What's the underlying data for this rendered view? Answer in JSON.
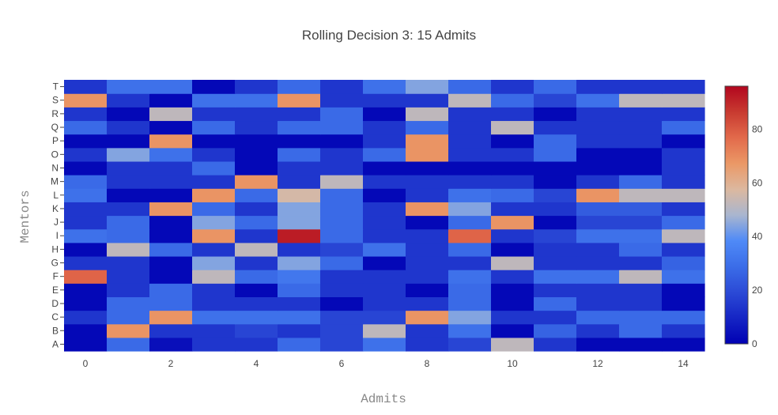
{
  "chart_data": {
    "type": "heatmap",
    "title": "Rolling Decision 3: 15 Admits",
    "xlabel": "Admits",
    "ylabel": "Mentors",
    "x": [
      0,
      1,
      2,
      3,
      4,
      5,
      6,
      7,
      8,
      9,
      10,
      11,
      12,
      13,
      14
    ],
    "x_tick_labels": [
      "0",
      "2",
      "4",
      "6",
      "8",
      "10",
      "12",
      "14"
    ],
    "x_tick_values": [
      0,
      2,
      4,
      6,
      8,
      10,
      12,
      14
    ],
    "y": [
      "A",
      "B",
      "C",
      "D",
      "E",
      "F",
      "G",
      "H",
      "I",
      "J",
      "K",
      "L",
      "M",
      "N",
      "O",
      "P",
      "Q",
      "R",
      "S",
      "T"
    ],
    "z": [
      [
        2,
        28,
        4,
        14,
        14,
        28,
        18,
        30,
        14,
        18,
        52,
        14,
        2,
        2,
        2
      ],
      [
        2,
        68,
        14,
        14,
        18,
        14,
        18,
        52,
        14,
        30,
        2,
        26,
        14,
        28,
        14
      ],
      [
        14,
        28,
        68,
        30,
        30,
        30,
        18,
        18,
        68,
        44,
        14,
        14,
        28,
        28,
        28
      ],
      [
        2,
        28,
        28,
        14,
        14,
        14,
        2,
        14,
        14,
        28,
        2,
        28,
        14,
        14,
        2
      ],
      [
        2,
        14,
        28,
        14,
        2,
        28,
        14,
        14,
        2,
        28,
        2,
        14,
        14,
        14,
        2
      ],
      [
        78,
        14,
        2,
        52,
        28,
        32,
        14,
        14,
        14,
        30,
        14,
        30,
        30,
        52,
        30
      ],
      [
        14,
        14,
        2,
        44,
        14,
        44,
        28,
        2,
        14,
        14,
        52,
        14,
        14,
        14,
        26
      ],
      [
        2,
        52,
        28,
        14,
        52,
        14,
        18,
        30,
        14,
        28,
        2,
        14,
        14,
        28,
        14
      ],
      [
        30,
        28,
        2,
        68,
        14,
        92,
        28,
        14,
        14,
        78,
        14,
        18,
        30,
        30,
        52
      ],
      [
        14,
        28,
        2,
        44,
        28,
        44,
        28,
        14,
        2,
        28,
        68,
        2,
        18,
        18,
        28
      ],
      [
        14,
        14,
        68,
        28,
        14,
        44,
        28,
        14,
        68,
        44,
        14,
        14,
        24,
        24,
        14
      ],
      [
        30,
        2,
        2,
        68,
        28,
        56,
        28,
        2,
        14,
        30,
        28,
        18,
        68,
        52,
        52
      ],
      [
        28,
        14,
        14,
        14,
        68,
        14,
        52,
        14,
        14,
        14,
        14,
        2,
        14,
        28,
        14
      ],
      [
        2,
        14,
        14,
        28,
        2,
        14,
        14,
        2,
        2,
        2,
        2,
        2,
        2,
        2,
        14
      ],
      [
        14,
        44,
        30,
        14,
        2,
        28,
        14,
        28,
        68,
        14,
        14,
        28,
        2,
        2,
        14
      ],
      [
        2,
        2,
        68,
        2,
        2,
        2,
        2,
        14,
        68,
        14,
        2,
        28,
        14,
        14,
        2
      ],
      [
        28,
        14,
        2,
        28,
        14,
        28,
        28,
        14,
        28,
        14,
        52,
        14,
        14,
        14,
        28
      ],
      [
        14,
        2,
        52,
        14,
        14,
        14,
        28,
        2,
        52,
        14,
        14,
        2,
        14,
        14,
        14
      ],
      [
        68,
        14,
        2,
        30,
        30,
        68,
        14,
        14,
        14,
        52,
        28,
        18,
        30,
        52,
        52
      ],
      [
        14,
        30,
        30,
        2,
        14,
        28,
        14,
        30,
        44,
        28,
        14,
        28,
        14,
        14,
        14
      ]
    ],
    "zmin": 0,
    "zmax": 96,
    "colorscale": [
      [
        0.0,
        "#0000b3"
      ],
      [
        0.2,
        "#2b4ad6"
      ],
      [
        0.3,
        "#3b6de8"
      ],
      [
        0.4,
        "#4f8af7"
      ],
      [
        0.5,
        "#a9b6cf"
      ],
      [
        0.6,
        "#dcb89f"
      ],
      [
        0.7,
        "#eb9866"
      ],
      [
        0.8,
        "#e26a4b"
      ],
      [
        0.9,
        "#c83a30"
      ],
      [
        1.0,
        "#b2061e"
      ]
    ],
    "colorbar": {
      "tick_values": [
        0,
        20,
        40,
        60,
        80
      ],
      "tick_labels": [
        "0",
        "20",
        "40",
        "60",
        "80"
      ]
    },
    "grid": false
  }
}
